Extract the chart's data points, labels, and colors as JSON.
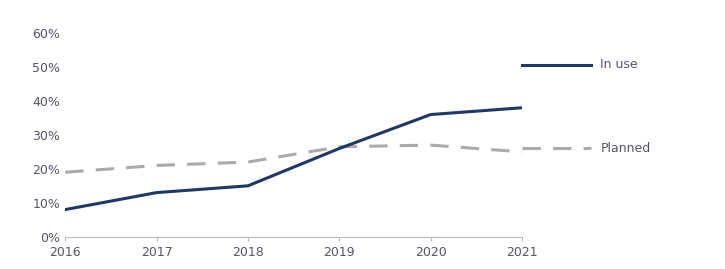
{
  "years": [
    2016,
    2017,
    2018,
    2019,
    2020,
    2021
  ],
  "in_use": [
    0.08,
    0.13,
    0.15,
    0.26,
    0.36,
    0.38
  ],
  "planned": [
    0.19,
    0.21,
    0.22,
    0.265,
    0.27,
    0.25
  ],
  "in_use_color": "#1f3864",
  "planned_color": "#aaaaaa",
  "in_use_label": "In use",
  "planned_label": "Planned",
  "ylim": [
    0,
    0.65
  ],
  "yticks": [
    0.0,
    0.1,
    0.2,
    0.3,
    0.4,
    0.5,
    0.6
  ],
  "ytick_labels": [
    "0%",
    "10%",
    "20%",
    "30%",
    "40%",
    "50%",
    "60%"
  ],
  "xticks": [
    2016,
    2017,
    2018,
    2019,
    2020,
    2021
  ],
  "background_color": "#ffffff",
  "line_width": 2.2,
  "legend_fontsize": 9,
  "tick_label_color": "#555566",
  "spine_color": "#bbbbbb"
}
